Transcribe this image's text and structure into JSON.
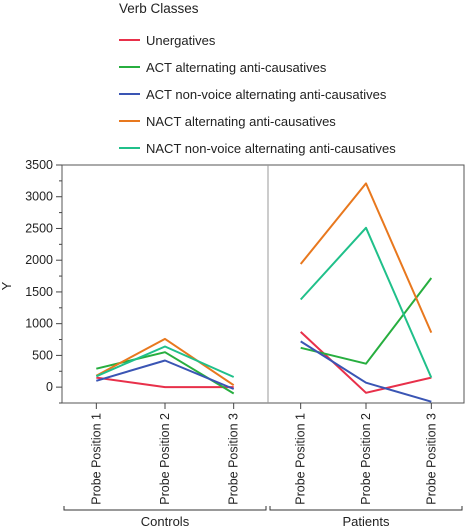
{
  "chart_data": {
    "type": "line",
    "legend": {
      "title": "Verb Classes",
      "placement": "top"
    },
    "ylabel": "Y",
    "ylim": [
      -250,
      3500
    ],
    "yticks": [
      0,
      500,
      1000,
      1500,
      2000,
      2500,
      3000,
      3500
    ],
    "grid": false,
    "categories": [
      "Probe Position 1",
      "Probe Position 2",
      "Probe Position 3"
    ],
    "groups": [
      {
        "name": "Controls",
        "series": [
          {
            "name": "Unergatives",
            "color": "#e8304a",
            "values": [
              150,
              0,
              0
            ]
          },
          {
            "name": "ACT alternating anti-causatives",
            "color": "#27ae3f",
            "values": [
              290,
              550,
              -100
            ]
          },
          {
            "name": "ACT non-voice alternating anti-causatives",
            "color": "#3a55b4",
            "values": [
              100,
              420,
              -30
            ]
          },
          {
            "name": "NACT alternating anti-causatives",
            "color": "#e8781e",
            "values": [
              180,
              760,
              30
            ]
          },
          {
            "name": "NACT non-voice alternating anti-causatives",
            "color": "#20c08a",
            "values": [
              170,
              640,
              160
            ]
          }
        ]
      },
      {
        "name": "Patients",
        "series": [
          {
            "name": "Unergatives",
            "color": "#e8304a",
            "values": [
              870,
              -90,
              150
            ]
          },
          {
            "name": "ACT alternating anti-causatives",
            "color": "#27ae3f",
            "values": [
              620,
              370,
              1720
            ]
          },
          {
            "name": "ACT non-voice alternating anti-causatives",
            "color": "#3a55b4",
            "values": [
              720,
              70,
              -230
            ]
          },
          {
            "name": "NACT alternating anti-causatives",
            "color": "#e8781e",
            "values": [
              1940,
              3210,
              860
            ]
          },
          {
            "name": "NACT non-voice alternating anti-causatives",
            "color": "#20c08a",
            "values": [
              1380,
              2510,
              150
            ]
          }
        ]
      }
    ]
  }
}
